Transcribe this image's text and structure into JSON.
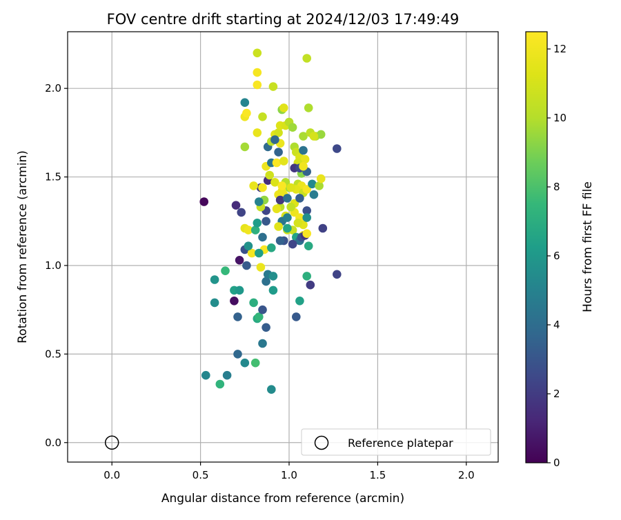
{
  "chart_data": {
    "type": "scatter",
    "title": "FOV centre drift starting at 2024/12/03 17:49:49",
    "xlabel": "Angular distance from reference (arcmin)",
    "ylabel": "Rotation from reference (arcmin)",
    "xlim": [
      -0.25,
      2.18
    ],
    "ylim": [
      -0.11,
      2.32
    ],
    "xticks": [
      0.0,
      0.5,
      1.0,
      1.5,
      2.0
    ],
    "xtick_labels": [
      "0.0",
      "0.5",
      "1.0",
      "1.5",
      "2.0"
    ],
    "yticks": [
      0.0,
      0.5,
      1.0,
      1.5,
      2.0
    ],
    "ytick_labels": [
      "0.0",
      "0.5",
      "1.0",
      "1.5",
      "2.0"
    ],
    "grid": true,
    "colormap": "viridis",
    "colorbar": {
      "label": "Hours from first FF file",
      "range": [
        0,
        12.5
      ],
      "ticks": [
        0,
        2,
        4,
        6,
        8,
        10,
        12
      ],
      "tick_labels": [
        "0",
        "2",
        "4",
        "6",
        "8",
        "10",
        "12"
      ]
    },
    "legend": {
      "placement": "lower-right",
      "entries": [
        {
          "label": "Reference platepar",
          "marker": "open-circle"
        }
      ]
    },
    "reference_point": {
      "x": 0.0,
      "y": 0.0,
      "label": "Reference platepar"
    },
    "points": [
      [
        0.52,
        1.36,
        0.2
      ],
      [
        0.69,
        0.8,
        0.4
      ],
      [
        0.72,
        1.03,
        0.6
      ],
      [
        0.7,
        1.34,
        1.4
      ],
      [
        0.73,
        1.3,
        2.3
      ],
      [
        0.75,
        1.09,
        2.8
      ],
      [
        0.76,
        1.0,
        3.2
      ],
      [
        0.71,
        0.71,
        3.5
      ],
      [
        0.71,
        0.5,
        3.8
      ],
      [
        0.75,
        0.45,
        5.3
      ],
      [
        0.65,
        0.38,
        4.8
      ],
      [
        0.53,
        0.38,
        5.2
      ],
      [
        0.61,
        0.33,
        7.3
      ],
      [
        0.58,
        0.79,
        5.5
      ],
      [
        0.58,
        0.92,
        5.8
      ],
      [
        0.64,
        0.97,
        7.5
      ],
      [
        0.69,
        0.86,
        6.4
      ],
      [
        0.72,
        0.86,
        6.0
      ],
      [
        0.8,
        0.79,
        7.0
      ],
      [
        0.82,
        0.7,
        6.8
      ],
      [
        0.83,
        0.71,
        7.4
      ],
      [
        0.81,
        0.45,
        7.8
      ],
      [
        0.85,
        0.56,
        4.5
      ],
      [
        0.87,
        0.65,
        3.3
      ],
      [
        0.9,
        0.3,
        5.4
      ],
      [
        0.85,
        0.75,
        3.0
      ],
      [
        0.87,
        0.91,
        4.2
      ],
      [
        0.88,
        0.95,
        4.6
      ],
      [
        0.91,
        0.94,
        5.6
      ],
      [
        0.91,
        0.86,
        6.1
      ],
      [
        0.84,
        0.99,
        11.8
      ],
      [
        0.86,
        1.09,
        12.3
      ],
      [
        0.79,
        1.07,
        12.1
      ],
      [
        0.9,
        1.1,
        6.7
      ],
      [
        0.83,
        1.07,
        6.3
      ],
      [
        0.77,
        1.11,
        5.7
      ],
      [
        0.75,
        1.21,
        11.6
      ],
      [
        0.77,
        1.2,
        12.0
      ],
      [
        0.81,
        1.2,
        7.1
      ],
      [
        0.82,
        1.24,
        6.2
      ],
      [
        0.85,
        1.16,
        4.1
      ],
      [
        0.87,
        1.25,
        3.1
      ],
      [
        0.87,
        1.31,
        2.4
      ],
      [
        0.84,
        1.33,
        10.5
      ],
      [
        0.86,
        1.37,
        9.4
      ],
      [
        0.83,
        1.36,
        5.0
      ],
      [
        0.84,
        1.44,
        2.0
      ],
      [
        0.85,
        1.44,
        12.2
      ],
      [
        0.8,
        1.45,
        11.7
      ],
      [
        0.88,
        1.48,
        1.5
      ],
      [
        0.89,
        1.51,
        10.8
      ],
      [
        0.92,
        1.47,
        11.2
      ],
      [
        0.87,
        1.56,
        11.9
      ],
      [
        0.9,
        1.58,
        4.4
      ],
      [
        0.93,
        1.58,
        12.4
      ],
      [
        0.94,
        1.64,
        3.6
      ],
      [
        0.88,
        1.67,
        3.9
      ],
      [
        0.9,
        1.7,
        10.2
      ],
      [
        0.75,
        1.67,
        9.7
      ],
      [
        0.92,
        1.74,
        11.5
      ],
      [
        0.94,
        1.75,
        10.9
      ],
      [
        0.95,
        1.79,
        11.3
      ],
      [
        0.98,
        1.79,
        11.1
      ],
      [
        1.0,
        1.81,
        10.1
      ],
      [
        1.02,
        1.78,
        9.6
      ],
      [
        0.95,
        1.69,
        11.8
      ],
      [
        0.96,
        1.88,
        9.3
      ],
      [
        0.97,
        1.89,
        11.4
      ],
      [
        0.91,
        2.01,
        10.6
      ],
      [
        0.82,
        2.02,
        12.3
      ],
      [
        0.82,
        2.09,
        12.2
      ],
      [
        0.82,
        2.2,
        10.7
      ],
      [
        1.1,
        2.17,
        10.4
      ],
      [
        1.11,
        1.89,
        9.9
      ],
      [
        1.08,
        1.73,
        9.8
      ],
      [
        1.12,
        1.75,
        10.3
      ],
      [
        1.15,
        1.73,
        10.0
      ],
      [
        1.18,
        1.74,
        9.5
      ],
      [
        1.14,
        1.73,
        11.0
      ],
      [
        0.85,
        1.84,
        10.5
      ],
      [
        0.75,
        1.84,
        12.0
      ],
      [
        0.76,
        1.86,
        12.4
      ],
      [
        0.82,
        1.75,
        11.7
      ],
      [
        0.75,
        1.92,
        5.1
      ],
      [
        1.27,
        1.66,
        2.5
      ],
      [
        1.03,
        1.67,
        9.9
      ],
      [
        1.04,
        1.64,
        10.7
      ],
      [
        1.06,
        1.61,
        11.2
      ],
      [
        1.08,
        1.65,
        4.3
      ],
      [
        1.09,
        1.6,
        11.6
      ],
      [
        1.05,
        1.58,
        11.0
      ],
      [
        1.03,
        1.55,
        1.8
      ],
      [
        1.07,
        1.52,
        9.2
      ],
      [
        1.1,
        1.53,
        3.5
      ],
      [
        1.06,
        1.55,
        2.6
      ],
      [
        1.08,
        1.56,
        12.0
      ],
      [
        1.05,
        1.46,
        10.3
      ],
      [
        1.07,
        1.45,
        11.8
      ],
      [
        1.04,
        1.43,
        11.5
      ],
      [
        1.08,
        1.41,
        10.6
      ],
      [
        1.1,
        1.43,
        12.2
      ],
      [
        1.13,
        1.46,
        5.3
      ],
      [
        1.17,
        1.45,
        9.8
      ],
      [
        1.18,
        1.49,
        11.7
      ],
      [
        1.14,
        1.4,
        4.7
      ],
      [
        1.03,
        1.35,
        11.3
      ],
      [
        1.06,
        1.38,
        3.4
      ],
      [
        1.1,
        1.31,
        2.8
      ],
      [
        1.03,
        1.3,
        11.9
      ],
      [
        1.06,
        1.27,
        12.1
      ],
      [
        1.08,
        1.23,
        11.4
      ],
      [
        1.05,
        1.24,
        11.0
      ],
      [
        1.1,
        1.27,
        5.6
      ],
      [
        1.02,
        1.2,
        10.6
      ],
      [
        1.08,
        1.17,
        11.8
      ],
      [
        1.04,
        1.16,
        6.5
      ],
      [
        1.06,
        1.14,
        4.1
      ],
      [
        1.07,
        1.16,
        2.9
      ],
      [
        1.02,
        1.12,
        2.4
      ],
      [
        1.09,
        1.17,
        1.7
      ],
      [
        1.11,
        1.11,
        6.8
      ],
      [
        1.1,
        1.18,
        12.3
      ],
      [
        1.1,
        0.94,
        7.1
      ],
      [
        1.12,
        0.89,
        2.0
      ],
      [
        1.06,
        0.8,
        6.4
      ],
      [
        1.04,
        0.71,
        3.2
      ],
      [
        1.19,
        1.21,
        2.2
      ],
      [
        1.27,
        0.95,
        2.3
      ],
      [
        0.94,
        1.4,
        11.9
      ],
      [
        0.97,
        1.4,
        12.2
      ],
      [
        0.95,
        1.33,
        10.2
      ],
      [
        0.93,
        1.32,
        11.6
      ],
      [
        0.98,
        1.28,
        11.1
      ],
      [
        0.96,
        1.25,
        4.4
      ],
      [
        0.99,
        1.2,
        10.8
      ],
      [
        0.97,
        1.14,
        2.9
      ],
      [
        0.95,
        1.14,
        3.5
      ],
      [
        0.99,
        1.21,
        6.6
      ],
      [
        0.94,
        1.22,
        11.4
      ],
      [
        1.0,
        1.44,
        9.5
      ],
      [
        0.98,
        1.47,
        10.0
      ],
      [
        1.01,
        1.44,
        11.3
      ],
      [
        0.96,
        1.42,
        11.8
      ],
      [
        0.97,
        1.59,
        11.5
      ],
      [
        0.92,
        1.71,
        3.8
      ],
      [
        0.99,
        1.27,
        4.9
      ],
      [
        1.01,
        1.33,
        10.4
      ],
      [
        0.95,
        1.37,
        1.8
      ],
      [
        0.96,
        1.45,
        12.4
      ],
      [
        0.99,
        1.38,
        4.2
      ]
    ]
  }
}
